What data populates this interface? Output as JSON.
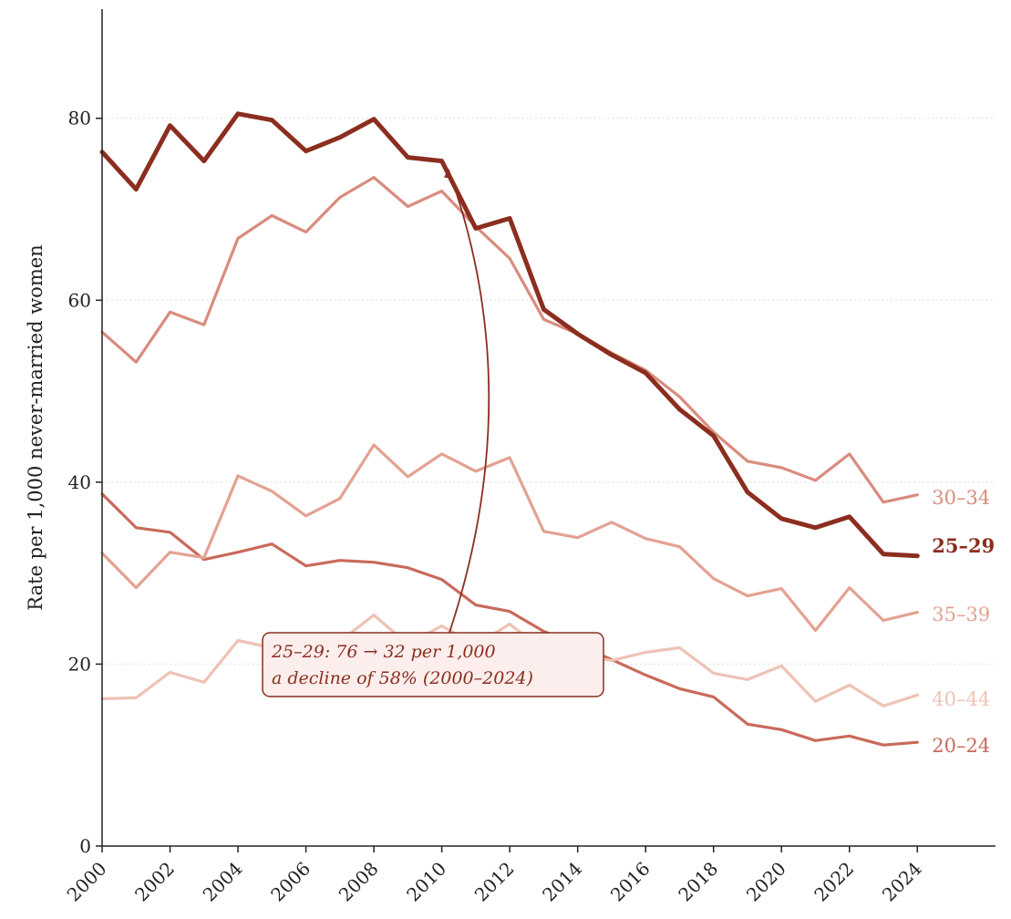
{
  "chart_data": {
    "type": "line",
    "ylabel": "Rate per 1,000 never-married women",
    "xlabel": "",
    "x": [
      2000,
      2001,
      2002,
      2003,
      2004,
      2005,
      2006,
      2007,
      2008,
      2009,
      2010,
      2011,
      2012,
      2013,
      2014,
      2015,
      2016,
      2017,
      2018,
      2019,
      2020,
      2021,
      2022,
      2023,
      2024
    ],
    "xticks": [
      "2000",
      "2002",
      "2004",
      "2006",
      "2008",
      "2010",
      "2012",
      "2014",
      "2016",
      "2018",
      "2020",
      "2022",
      "2024"
    ],
    "xlim": [
      2000,
      2026.3
    ],
    "ylim": [
      0,
      92
    ],
    "yticks": [
      "0",
      "20",
      "40",
      "60",
      "80"
    ],
    "grid": "horizontal dotted",
    "series": [
      {
        "name": "20–24",
        "color": "#C96A5A",
        "bold": false,
        "values": [
          38.7,
          35.0,
          34.5,
          31.5,
          32.3,
          33.2,
          30.8,
          31.4,
          31.2,
          30.6,
          29.3,
          26.5,
          25.8,
          23.6,
          22.1,
          20.5,
          18.8,
          17.3,
          16.4,
          13.4,
          12.8,
          11.6,
          12.1,
          11.1,
          11.4
        ]
      },
      {
        "name": "25–29",
        "color": "#8B2E1F",
        "bold": true,
        "values": [
          76.3,
          72.2,
          79.2,
          75.3,
          80.5,
          79.8,
          76.4,
          77.9,
          79.9,
          75.7,
          75.3,
          67.9,
          69.0,
          59.0,
          56.3,
          54.0,
          52.0,
          48.0,
          45.1,
          38.9,
          36.0,
          35.0,
          36.2,
          32.1,
          31.9
        ]
      },
      {
        "name": "30–34",
        "color": "#D98C7E",
        "bold": false,
        "values": [
          56.5,
          53.2,
          58.7,
          57.3,
          66.8,
          69.3,
          67.5,
          71.3,
          73.5,
          70.3,
          72.0,
          68.1,
          64.6,
          57.9,
          56.3,
          54.2,
          52.3,
          49.4,
          45.5,
          42.3,
          41.6,
          40.2,
          43.1,
          37.8,
          38.6
        ]
      },
      {
        "name": "35–39",
        "color": "#E3A292",
        "bold": false,
        "values": [
          32.2,
          28.4,
          32.3,
          31.7,
          40.7,
          39.0,
          36.3,
          38.2,
          44.1,
          40.6,
          43.1,
          41.2,
          42.7,
          34.6,
          33.9,
          35.6,
          33.8,
          32.9,
          29.4,
          27.5,
          28.3,
          23.7,
          28.4,
          24.8,
          25.7
        ]
      },
      {
        "name": "40–44",
        "color": "#EEC2B6",
        "bold": false,
        "values": [
          16.2,
          16.3,
          19.1,
          18.0,
          22.6,
          21.8,
          23.1,
          22.5,
          25.4,
          22.2,
          24.2,
          22.1,
          24.4,
          21.5,
          21.0,
          20.4,
          21.3,
          21.8,
          19.0,
          18.3,
          19.8,
          15.9,
          17.7,
          15.4,
          16.6
        ]
      }
    ],
    "annotation": {
      "text_line1": "25–29: 76 → 32 per 1,000",
      "text_line2": "a decline of 58% (2000–2024)",
      "color": "#8B2E1F"
    }
  }
}
